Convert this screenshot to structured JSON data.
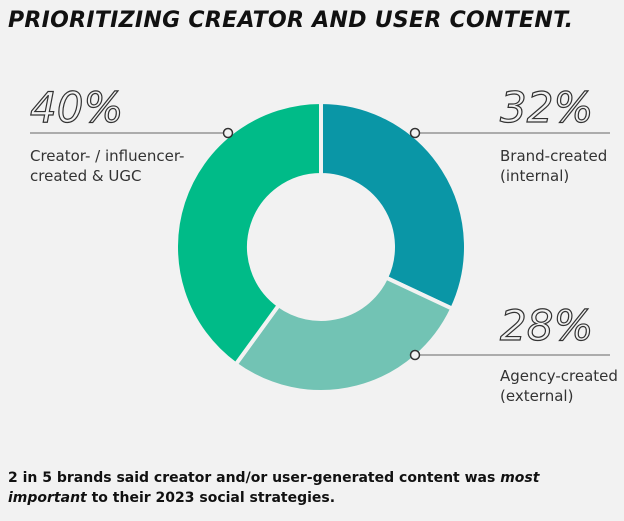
{
  "chart_data": {
    "type": "pie",
    "donut": true,
    "title": "PRIORITIZING CREATOR AND USER CONTENT.",
    "categories": [
      "Brand-created (internal)",
      "Agency-created (external)",
      "Creator- / influencer-created & UGC"
    ],
    "values": [
      32,
      28,
      40
    ],
    "value_labels": [
      "32%",
      "28%",
      "40%"
    ],
    "colors": [
      "#0a96a6",
      "#72c3b4",
      "#00bb88"
    ],
    "note": {
      "before": "2 in 5 brands said creator and/or user-generated content was ",
      "emphasis": "most important",
      "after": " to their 2023 social strategies."
    }
  }
}
